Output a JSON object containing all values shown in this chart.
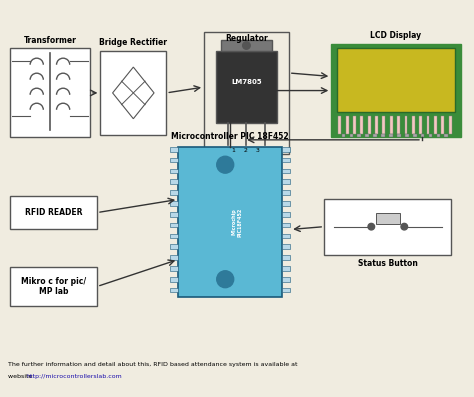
{
  "bg_color": "#f0ece0",
  "box_edge_color": "#555555",
  "arrow_color": "#333333",
  "lcd_green": "#3a8c3a",
  "lcd_yellow": "#c8b820",
  "lcd_pink": "#f5c8c0",
  "chip_blue": "#5ab8d4",
  "footer_line1": "The further information and detail about this, RFID based attendance system is available at",
  "footer_line2_plain": "website ",
  "footer_link": "http://microcontrollerslab.com",
  "labels": {
    "transformer": "Transformer",
    "bridge": "Bridge Rectifier",
    "regulator": "Regulator",
    "lcd": "LCD Display",
    "mcu": "Microcontroller PIC 18F452",
    "rfid": "RFID READER",
    "mikro": "Mikro c for pic/\nMP lab",
    "status": "Status Button",
    "lm": "LM7805",
    "pins": "1    2    3"
  }
}
